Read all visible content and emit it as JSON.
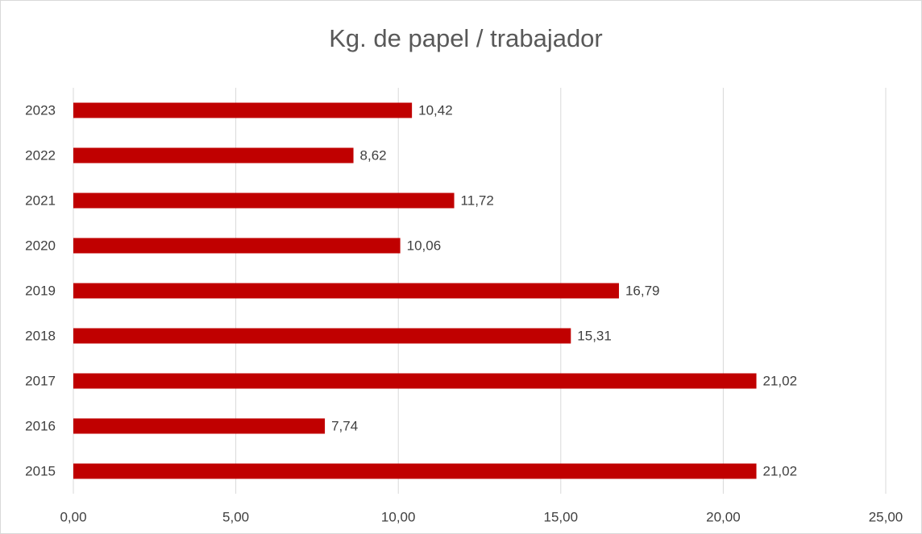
{
  "chart_data": {
    "type": "bar",
    "orientation": "horizontal",
    "title": "Kg. de papel /  trabajador",
    "categories": [
      "2015",
      "2016",
      "2017",
      "2018",
      "2019",
      "2020",
      "2021",
      "2022",
      "2023"
    ],
    "values": [
      21.02,
      7.74,
      21.02,
      15.31,
      16.79,
      10.06,
      11.72,
      8.62,
      10.42
    ],
    "value_labels": [
      "21,02",
      "7,74",
      "21,02",
      "15,31",
      "16,79",
      "10,06",
      "11,72",
      "8,62",
      "10,42"
    ],
    "color": "#c00000",
    "xlim": [
      0,
      25
    ],
    "xticks": [
      {
        "value": 0,
        "label": "0,00"
      },
      {
        "value": 5,
        "label": "5,00"
      },
      {
        "value": 10,
        "label": "10,00"
      },
      {
        "value": 15,
        "label": "15,00"
      },
      {
        "value": 20,
        "label": "20,00"
      },
      {
        "value": 25,
        "label": "25,00"
      }
    ],
    "grid": true
  }
}
